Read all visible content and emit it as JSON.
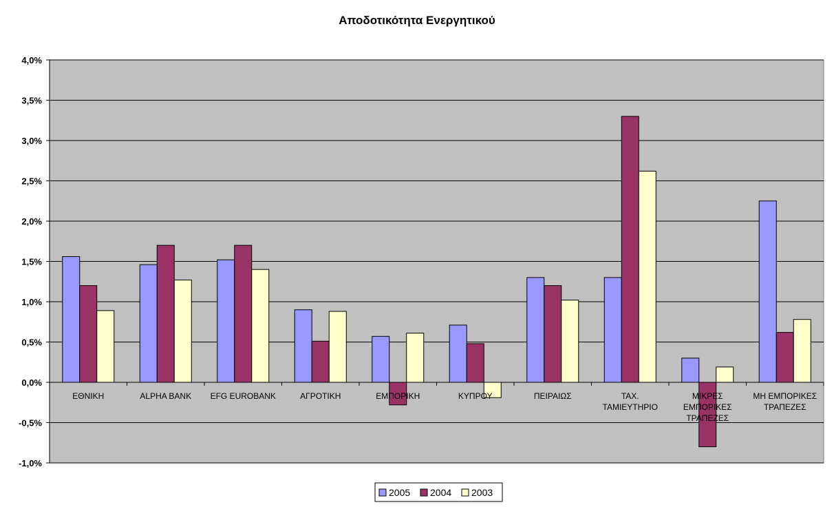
{
  "chart_data": {
    "type": "bar",
    "title": "Αποδοτικότητα Ενεργητικού",
    "xlabel": "",
    "ylabel": "",
    "ylim": [
      -1.0,
      4.0
    ],
    "yticks": [
      -1.0,
      -0.5,
      0.0,
      0.5,
      1.0,
      1.5,
      2.0,
      2.5,
      3.0,
      3.5,
      4.0
    ],
    "ytick_labels": [
      "-1,0%",
      "-0,5%",
      "0,0%",
      "0,5%",
      "1,0%",
      "1,5%",
      "2,0%",
      "2,5%",
      "3,0%",
      "3,5%",
      "4,0%"
    ],
    "grid": true,
    "legend_position": "bottom",
    "categories": [
      [
        "ΕΘΝΙΚΗ"
      ],
      [
        "ALPHA BANK"
      ],
      [
        "EFG EUROBANK"
      ],
      [
        "ΑΓΡΟΤΙΚΗ"
      ],
      [
        "ΕΜΠΟΡΙΚΗ"
      ],
      [
        "ΚΥΠΡΟΥ"
      ],
      [
        "ΠΕΙΡΑΙΩΣ"
      ],
      [
        "ΤΑΧ.",
        "ΤΑΜΙΕΥΤΗΡΙΟ"
      ],
      [
        "ΜΙΚΡΕΣ",
        "ΕΜΠΟΡΙΚΕΣ",
        "ΤΡΑΠΕΖΕΣ"
      ],
      [
        "ΜΗ ΕΜΠΟΡΙΚΕΣ",
        "ΤΡΑΠΕΖΕΣ"
      ]
    ],
    "series": [
      {
        "name": "2005",
        "color": "#9999FF",
        "values": [
          1.56,
          1.46,
          1.52,
          0.9,
          0.57,
          0.71,
          1.3,
          1.3,
          0.3,
          2.25
        ]
      },
      {
        "name": "2004",
        "color": "#993366",
        "values": [
          1.2,
          1.7,
          1.7,
          0.51,
          -0.28,
          0.48,
          1.2,
          3.3,
          -0.8,
          0.62
        ]
      },
      {
        "name": "2003",
        "color": "#FFFFCC",
        "values": [
          0.89,
          1.27,
          1.4,
          0.88,
          0.61,
          -0.19,
          1.02,
          2.62,
          0.19,
          0.78
        ]
      }
    ],
    "plot_background": "#C0C0C0"
  }
}
